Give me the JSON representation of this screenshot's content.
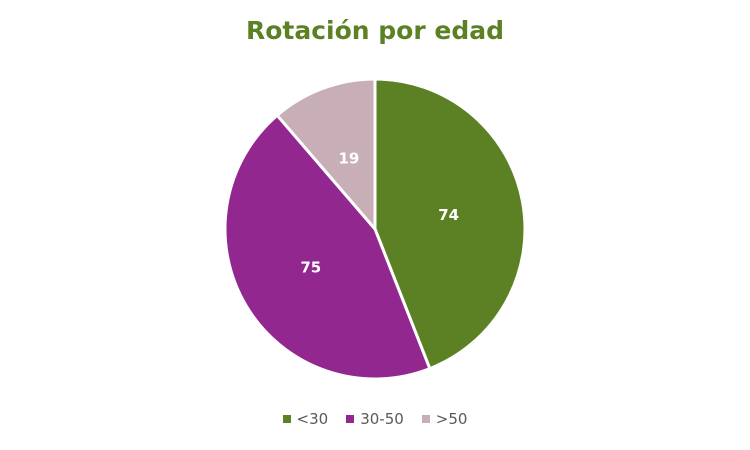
{
  "chart_data": {
    "type": "pie",
    "title": "Rotación por edad",
    "categories": [
      "<30",
      "30-50",
      ">50"
    ],
    "values": [
      74,
      75,
      19
    ],
    "colors": [
      "#5B8124",
      "#92278F",
      "#C8AEB7"
    ],
    "data_labels": [
      "74",
      "75",
      "19"
    ],
    "legend_position": "bottom",
    "start_angle": "12 o'clock",
    "direction": "clockwise"
  }
}
